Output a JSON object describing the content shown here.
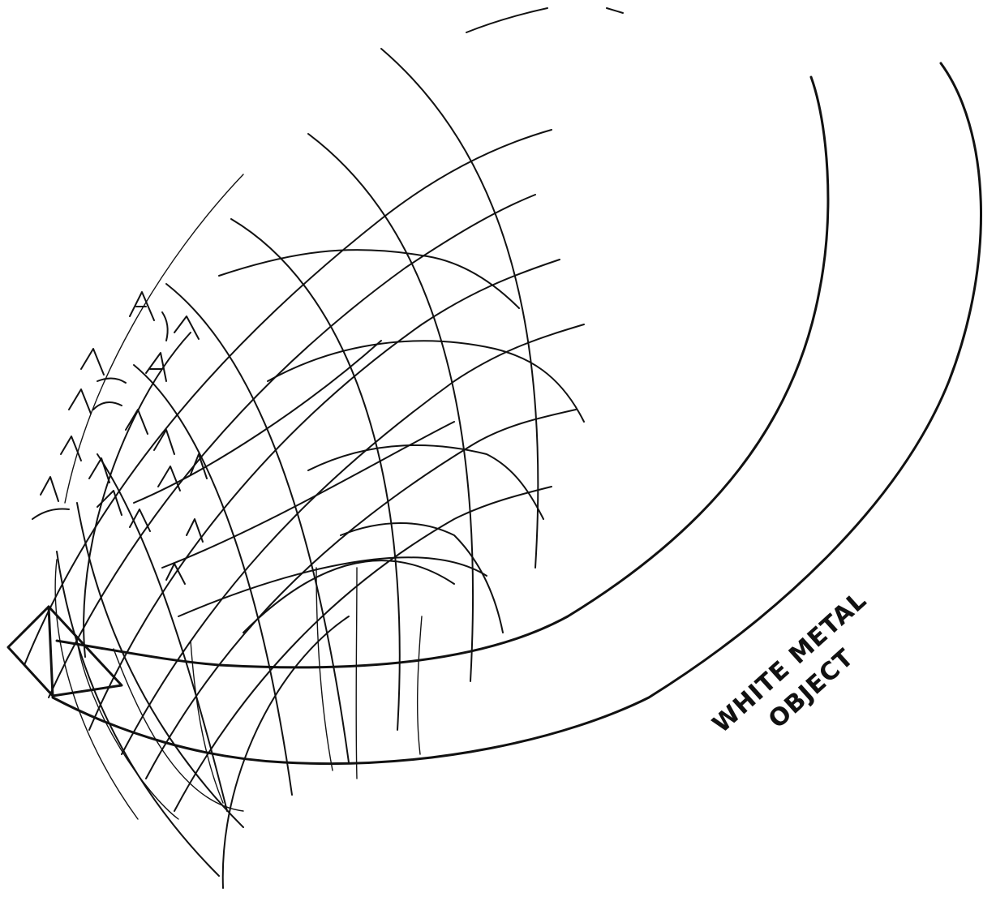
{
  "drawing": {
    "label_line1": "WHITE METAL",
    "label_line2": "OBJECT",
    "ink_color": "#111111",
    "paper_color": "#ffffff"
  }
}
